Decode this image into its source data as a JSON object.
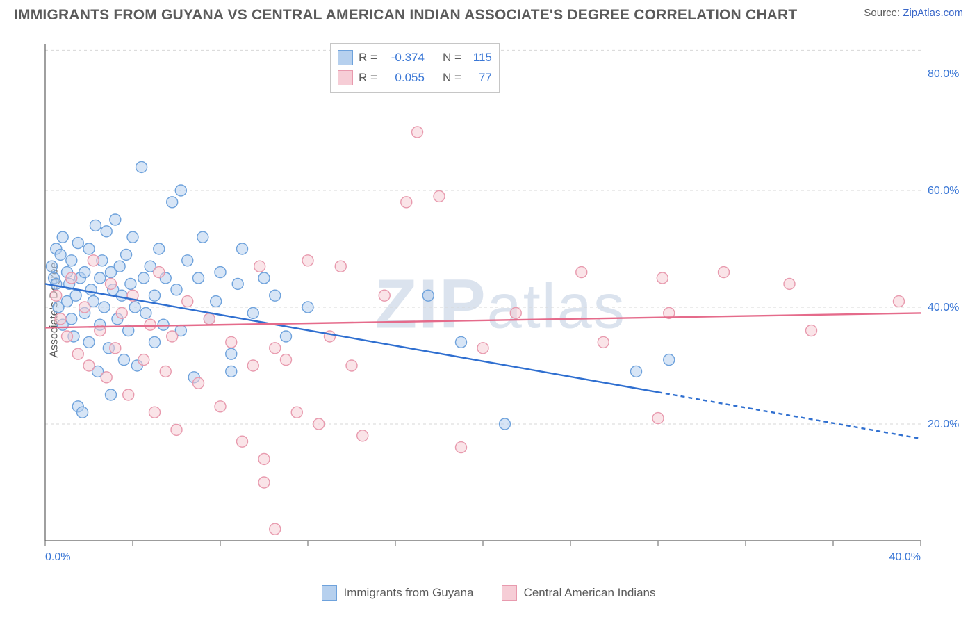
{
  "title": "IMMIGRANTS FROM GUYANA VS CENTRAL AMERICAN INDIAN ASSOCIATE'S DEGREE CORRELATION CHART",
  "source_prefix": "Source: ",
  "source_name": "ZipAtlas.com",
  "yaxis_label": "Associate's Degree",
  "watermark_bold": "ZIP",
  "watermark_rest": "atlas",
  "chart": {
    "type": "scatter",
    "xlim": [
      0,
      40
    ],
    "ylim": [
      0,
      85
    ],
    "xticks": [
      0,
      40
    ],
    "yticks_right": [
      20,
      40,
      60,
      80
    ],
    "y_gridlines": [
      20,
      40,
      60,
      84
    ],
    "x_minor_ticks": [
      0,
      4,
      8,
      12,
      16,
      20,
      24,
      28,
      32,
      36,
      40
    ],
    "xtick_format": "{v}.0%",
    "ytick_format": "{v}.0%",
    "grid_color": "#d7d7d7",
    "axis_color": "#606060",
    "background": "#ffffff",
    "marker_radius": 8,
    "marker_stroke_width": 1.4,
    "series": [
      {
        "name": "Immigrants from Guyana",
        "fill": "#b6d0ee",
        "stroke": "#6ea2dc",
        "fill_opacity": 0.55,
        "R": "-0.374",
        "N": "115",
        "trend": {
          "y_at_x0": 44,
          "y_at_x40": 17.5,
          "solid_until_x": 28,
          "color": "#2f6fd0",
          "width": 2.4
        },
        "points": [
          [
            0.3,
            47
          ],
          [
            0.4,
            45
          ],
          [
            0.5,
            50
          ],
          [
            0.5,
            44
          ],
          [
            0.6,
            40
          ],
          [
            0.7,
            49
          ],
          [
            0.8,
            37
          ],
          [
            0.8,
            52
          ],
          [
            1.0,
            41
          ],
          [
            1.0,
            46
          ],
          [
            1.1,
            44
          ],
          [
            1.2,
            38
          ],
          [
            1.2,
            48
          ],
          [
            1.3,
            35
          ],
          [
            1.4,
            42
          ],
          [
            1.5,
            51
          ],
          [
            1.5,
            23
          ],
          [
            1.6,
            45
          ],
          [
            1.7,
            22
          ],
          [
            1.8,
            39
          ],
          [
            1.8,
            46
          ],
          [
            2.0,
            34
          ],
          [
            2.0,
            50
          ],
          [
            2.1,
            43
          ],
          [
            2.2,
            41
          ],
          [
            2.3,
            54
          ],
          [
            2.4,
            29
          ],
          [
            2.5,
            45
          ],
          [
            2.5,
            37
          ],
          [
            2.6,
            48
          ],
          [
            2.7,
            40
          ],
          [
            2.8,
            53
          ],
          [
            2.9,
            33
          ],
          [
            3.0,
            46
          ],
          [
            3.0,
            25
          ],
          [
            3.1,
            43
          ],
          [
            3.2,
            55
          ],
          [
            3.3,
            38
          ],
          [
            3.4,
            47
          ],
          [
            3.5,
            42
          ],
          [
            3.6,
            31
          ],
          [
            3.7,
            49
          ],
          [
            3.8,
            36
          ],
          [
            3.9,
            44
          ],
          [
            4.0,
            52
          ],
          [
            4.1,
            40
          ],
          [
            4.2,
            30
          ],
          [
            4.4,
            64
          ],
          [
            4.5,
            45
          ],
          [
            4.6,
            39
          ],
          [
            4.8,
            47
          ],
          [
            5.0,
            42
          ],
          [
            5.0,
            34
          ],
          [
            5.2,
            50
          ],
          [
            5.4,
            37
          ],
          [
            5.5,
            45
          ],
          [
            5.8,
            58
          ],
          [
            6.0,
            43
          ],
          [
            6.2,
            36
          ],
          [
            6.5,
            48
          ],
          [
            6.8,
            28
          ],
          [
            7.0,
            45
          ],
          [
            7.2,
            52
          ],
          [
            7.5,
            38
          ],
          [
            7.8,
            41
          ],
          [
            8.0,
            46
          ],
          [
            8.5,
            32
          ],
          [
            8.8,
            44
          ],
          [
            9.0,
            50
          ],
          [
            6.2,
            60
          ],
          [
            9.5,
            39
          ],
          [
            10.0,
            45
          ],
          [
            10.5,
            42
          ],
          [
            11.0,
            35
          ],
          [
            8.5,
            29
          ],
          [
            12.0,
            40
          ],
          [
            19.0,
            34
          ],
          [
            21.0,
            20
          ],
          [
            17.5,
            42
          ],
          [
            27.0,
            29
          ],
          [
            28.5,
            31
          ]
        ]
      },
      {
        "name": "Central American Indians",
        "fill": "#f6cdd6",
        "stroke": "#e89aae",
        "fill_opacity": 0.55,
        "R": "0.055",
        "N": "77",
        "trend": {
          "y_at_x0": 36.5,
          "y_at_x40": 39,
          "solid_until_x": 40,
          "color": "#e56b8b",
          "width": 2.4
        },
        "points": [
          [
            0.5,
            42
          ],
          [
            0.7,
            38
          ],
          [
            1.0,
            35
          ],
          [
            1.2,
            45
          ],
          [
            1.5,
            32
          ],
          [
            1.8,
            40
          ],
          [
            2.0,
            30
          ],
          [
            2.2,
            48
          ],
          [
            2.5,
            36
          ],
          [
            2.8,
            28
          ],
          [
            3.0,
            44
          ],
          [
            3.2,
            33
          ],
          [
            3.5,
            39
          ],
          [
            3.8,
            25
          ],
          [
            4.0,
            42
          ],
          [
            4.5,
            31
          ],
          [
            4.8,
            37
          ],
          [
            5.0,
            22
          ],
          [
            5.2,
            46
          ],
          [
            5.5,
            29
          ],
          [
            5.8,
            35
          ],
          [
            6.0,
            19
          ],
          [
            6.5,
            41
          ],
          [
            7.0,
            27
          ],
          [
            7.5,
            38
          ],
          [
            8.0,
            23
          ],
          [
            8.5,
            34
          ],
          [
            9.0,
            17
          ],
          [
            9.5,
            30
          ],
          [
            10.0,
            14
          ],
          [
            9.8,
            47
          ],
          [
            10.5,
            33
          ],
          [
            10.0,
            10
          ],
          [
            11.0,
            31
          ],
          [
            10.5,
            2
          ],
          [
            11.5,
            22
          ],
          [
            12.0,
            48
          ],
          [
            12.5,
            20
          ],
          [
            13.0,
            35
          ],
          [
            13.5,
            47
          ],
          [
            14.0,
            30
          ],
          [
            14.5,
            18
          ],
          [
            15.5,
            42
          ],
          [
            17.0,
            70
          ],
          [
            16.5,
            58
          ],
          [
            18.0,
            59
          ],
          [
            19.0,
            16
          ],
          [
            20.0,
            33
          ],
          [
            21.5,
            39
          ],
          [
            24.5,
            46
          ],
          [
            25.5,
            34
          ],
          [
            28.0,
            21
          ],
          [
            28.2,
            45
          ],
          [
            28.5,
            39
          ],
          [
            31.0,
            46
          ],
          [
            34.0,
            44
          ],
          [
            35.0,
            36
          ],
          [
            39.0,
            41
          ]
        ]
      }
    ]
  },
  "corr_labels": {
    "R": "R =",
    "N": "N ="
  },
  "legend_series1": "Immigrants from Guyana",
  "legend_series2": "Central American Indians"
}
